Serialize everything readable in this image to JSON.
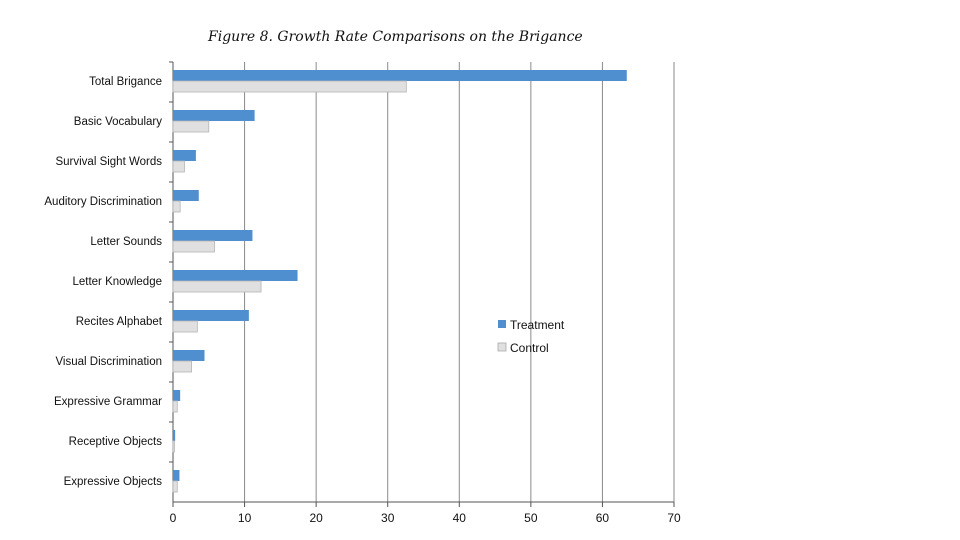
{
  "chart_data": {
    "type": "bar",
    "orientation": "horizontal",
    "title": "Figure 8. Growth Rate Comparisons on the Brigance",
    "categories": [
      "Total Brigance",
      "Basic Vocabulary",
      "Survival Sight Words",
      "Auditory Discrimination",
      "Letter Sounds",
      "Letter Knowledge",
      "Recites Alphabet",
      "Visual Discrimination",
      "Expressive Grammar",
      "Receptive Objects",
      "Expressive Objects"
    ],
    "series": [
      {
        "name": "Treatment",
        "color": "#4f8fcf",
        "values": [
          63.4,
          11.4,
          3.2,
          3.6,
          11.1,
          17.4,
          10.6,
          4.4,
          1.0,
          0.3,
          0.9
        ]
      },
      {
        "name": "Control",
        "color": "#e0e0e0",
        "values": [
          32.6,
          5.0,
          1.6,
          1.0,
          5.8,
          12.3,
          3.4,
          2.6,
          0.6,
          0.2,
          0.6
        ]
      }
    ],
    "xlim": [
      0,
      70
    ],
    "xticks": [
      0,
      10,
      20,
      30,
      40,
      50,
      60,
      70
    ],
    "grid": "vertical",
    "legend_position": "right-middle"
  }
}
